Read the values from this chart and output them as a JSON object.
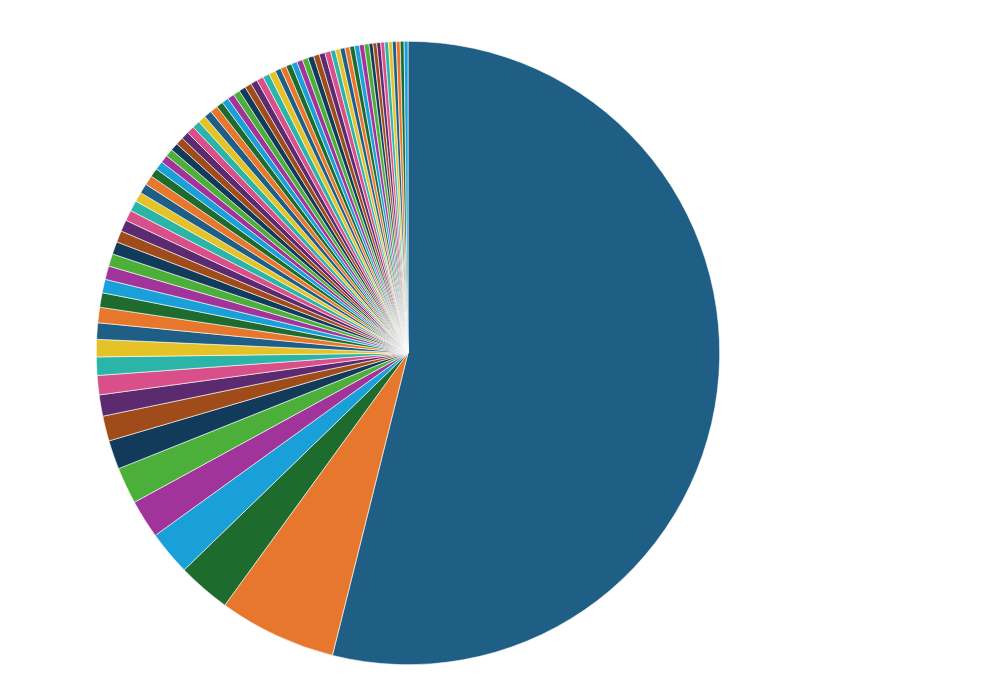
{
  "chart_data": {
    "type": "pie",
    "categories": [
      null,
      null,
      null,
      null,
      null,
      null,
      null,
      null,
      null,
      null,
      null,
      null,
      null,
      null,
      null,
      null,
      null,
      null,
      null,
      null,
      null,
      null,
      null,
      null,
      null,
      null,
      null,
      null,
      null,
      null,
      null,
      null,
      null,
      null,
      null,
      null,
      null,
      null,
      null,
      null,
      null,
      null,
      null,
      null,
      null,
      null,
      null,
      null,
      null,
      null,
      null,
      null,
      null,
      null,
      null,
      null,
      null,
      null,
      null,
      null,
      null,
      null,
      null,
      null,
      null,
      null,
      null,
      null,
      null,
      null,
      null,
      null,
      null,
      null,
      null,
      null
    ],
    "values": [
      53.9,
      6.1,
      2.75,
      2.3,
      2,
      1.9,
      1.5,
      1.3,
      1.1,
      1.0,
      0.95,
      0.9,
      0.85,
      0.8,
      0.75,
      0.7,
      0.7,
      0.65,
      0.65,
      0.6,
      0.6,
      0.55,
      0.55,
      0.5,
      0.5,
      0.5,
      0.45,
      0.45,
      0.4,
      0.4,
      0.4,
      0.4,
      0.4,
      0.4,
      0.4,
      0.4,
      0.4,
      0.4,
      0.35,
      0.35,
      0.35,
      0.35,
      0.35,
      0.35,
      0.35,
      0.35,
      0.35,
      0.35,
      0.3,
      0.3,
      0.3,
      0.3,
      0.3,
      0.3,
      0.3,
      0.3,
      0.3,
      0.3,
      0.25,
      0.25,
      0.25,
      0.25,
      0.25,
      0.25,
      0.25,
      0.25,
      0.2,
      0.2,
      0.2,
      0.2,
      0.2,
      0.2,
      0.2,
      0.2,
      0.2,
      0.2
    ],
    "colors": [
      "#1f5f85",
      "#e8772e",
      "#1e6b2e",
      "#1aa0d8",
      "#a0349a",
      "#4caf3a",
      "#123a5a",
      "#a04b1a",
      "#5c2a6e",
      "#d94f8a",
      "#2bb5a8",
      "#e6c229",
      "#1f5f85",
      "#e8772e",
      "#1e6b2e",
      "#1aa0d8",
      "#a0349a",
      "#4caf3a",
      "#123a5a",
      "#a04b1a",
      "#5c2a6e",
      "#d94f8a",
      "#2bb5a8",
      "#e6c229",
      "#1f5f85",
      "#e8772e",
      "#1e6b2e",
      "#1aa0d8",
      "#a0349a",
      "#4caf3a",
      "#123a5a",
      "#a04b1a",
      "#5c2a6e",
      "#d94f8a",
      "#2bb5a8",
      "#e6c229",
      "#1f5f85",
      "#e8772e",
      "#1e6b2e",
      "#1aa0d8",
      "#a0349a",
      "#4caf3a",
      "#123a5a",
      "#a04b1a",
      "#5c2a6e",
      "#d94f8a",
      "#2bb5a8",
      "#e6c229",
      "#1f5f85",
      "#e8772e",
      "#1e6b2e",
      "#1aa0d8",
      "#a0349a",
      "#4caf3a",
      "#123a5a",
      "#a04b1a",
      "#5c2a6e",
      "#d94f8a",
      "#2bb5a8",
      "#e6c229",
      "#1f5f85",
      "#e8772e",
      "#1e6b2e",
      "#1aa0d8",
      "#a0349a",
      "#4caf3a",
      "#123a5a",
      "#a04b1a",
      "#5c2a6e",
      "#d94f8a",
      "#2bb5a8",
      "#e6c229",
      "#1f5f85",
      "#e8772e",
      "#1e6b2e",
      "#1aa0d8"
    ],
    "legend": false
  }
}
